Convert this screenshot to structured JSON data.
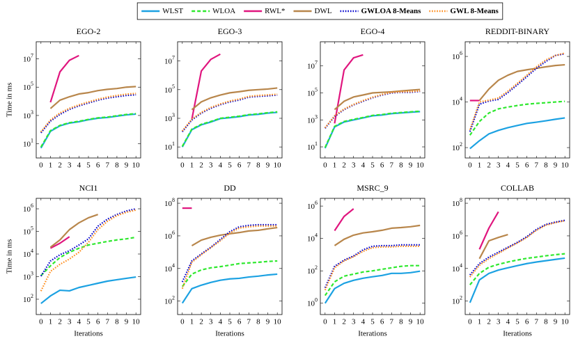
{
  "legend": [
    {
      "name": "WLST",
      "color": "#1ba1e2",
      "dash": "none",
      "bold": false
    },
    {
      "name": "WLOA",
      "color": "#2ee82e",
      "dash": "5,3",
      "bold": false
    },
    {
      "name": "RWL*",
      "color": "#e0157e",
      "dash": "none",
      "bold": false
    },
    {
      "name": "DWL",
      "color": "#b8864b",
      "dash": "none",
      "bold": false
    },
    {
      "name": "GWLOA 8-Means",
      "color": "#0000cc",
      "dash": "1.6,2",
      "bold": true
    },
    {
      "name": "GWL 8-Means",
      "color": "#ff8c1a",
      "dash": "1.6,2",
      "bold": true
    }
  ],
  "chart_data": [
    {
      "type": "line",
      "title": "EGO-2",
      "ylabel": "Time in ms",
      "log_y": true,
      "x": [
        0,
        1,
        2,
        3,
        4,
        5,
        6,
        7,
        8,
        9,
        10
      ],
      "xlim": [
        -0.5,
        10.5
      ],
      "xticks": [
        0,
        1,
        2,
        3,
        4,
        5,
        6,
        7,
        8,
        9,
        10
      ],
      "ylim": [
        1,
        160000000
      ],
      "yticks": [
        {
          "value": 10,
          "label": "10^1"
        },
        {
          "value": 1000,
          "label": "10^3"
        },
        {
          "value": 100000,
          "label": "10^5"
        },
        {
          "value": 10000000,
          "label": "10^7"
        }
      ],
      "series": [
        {
          "values": [
            5,
            76,
            186,
            290,
            360,
            500,
            640,
            720,
            900,
            1100,
            1250
          ]
        },
        {
          "values": [
            6,
            85,
            200,
            310,
            390,
            530,
            680,
            770,
            960,
            1180,
            1350
          ]
        },
        {
          "values": [
            null,
            8500,
            1200000,
            7900000,
            17000000,
            null,
            null,
            null,
            null,
            null,
            null
          ]
        },
        {
          "values": [
            null,
            3100,
            12000,
            21000,
            33000,
            41000,
            57000,
            70000,
            80000,
            100000,
            110000
          ]
        },
        {
          "values": [
            60,
            400,
            1200,
            2700,
            4800,
            7600,
            12000,
            17000,
            21000,
            26000,
            29000
          ]
        },
        {
          "values": [
            70,
            480,
            1500,
            3200,
            5600,
            9000,
            14000,
            20000,
            26000,
            32000,
            36000
          ]
        }
      ]
    },
    {
      "type": "line",
      "title": "EGO-3",
      "log_y": true,
      "x": [
        0,
        1,
        2,
        3,
        4,
        5,
        6,
        7,
        8,
        9,
        10
      ],
      "xlim": [
        -0.5,
        10.5
      ],
      "xticks": [
        0,
        1,
        2,
        3,
        4,
        5,
        6,
        7,
        8,
        9,
        10
      ],
      "ylim": [
        1.7,
        220000000
      ],
      "yticks": [
        {
          "value": 10,
          "label": "10^1"
        },
        {
          "value": 1000,
          "label": "10^3"
        },
        {
          "value": 100000,
          "label": "10^5"
        },
        {
          "value": 10000000,
          "label": "10^7"
        }
      ],
      "series": [
        {
          "values": [
            10,
            160,
            350,
            550,
            950,
            1100,
            1300,
            1700,
            1900,
            2300,
            2600
          ]
        },
        {
          "values": [
            11,
            175,
            380,
            600,
            1000,
            1180,
            1400,
            1800,
            2050,
            2450,
            2800
          ]
        },
        {
          "values": [
            null,
            850,
            2000000,
            13000000,
            30000000,
            null,
            null,
            null,
            null,
            null,
            null
          ]
        },
        {
          "values": [
            null,
            4000,
            14000,
            27000,
            42000,
            60000,
            72000,
            90000,
            100000,
            110000,
            130000
          ]
        },
        {
          "values": [
            115,
            760,
            2300,
            5000,
            8900,
            14000,
            19000,
            30000,
            34000,
            37000,
            42000
          ]
        },
        {
          "values": [
            130,
            870,
            2600,
            5700,
            10000,
            16000,
            22000,
            34000,
            39000,
            43000,
            48000
          ]
        }
      ]
    },
    {
      "type": "line",
      "title": "EGO-4",
      "log_y": true,
      "x": [
        0,
        1,
        2,
        3,
        4,
        5,
        6,
        7,
        8,
        9,
        10
      ],
      "xlim": [
        -0.5,
        10.5
      ],
      "xticks": [
        0,
        1,
        2,
        3,
        4,
        5,
        6,
        7,
        8,
        9,
        10
      ],
      "ylim": [
        1.5,
        620000000
      ],
      "yticks": [
        {
          "value": 10,
          "label": "10^1"
        },
        {
          "value": 1000,
          "label": "10^3"
        },
        {
          "value": 100000,
          "label": "10^5"
        },
        {
          "value": 10000000,
          "label": "10^7"
        }
      ],
      "series": [
        {
          "values": [
            8,
            300,
            700,
            1000,
            1400,
            2000,
            2300,
            2900,
            3300,
            3700,
            4100
          ]
        },
        {
          "values": [
            9,
            330,
            760,
            1100,
            1500,
            2150,
            2500,
            3100,
            3500,
            3950,
            4400
          ]
        },
        {
          "values": [
            null,
            550,
            5000000,
            40000000,
            66000000,
            null,
            null,
            null,
            null,
            null,
            null
          ]
        },
        {
          "values": [
            null,
            5800,
            24000,
            50000,
            70000,
            100000,
            110000,
            120000,
            140000,
            160000,
            180000
          ]
        },
        {
          "values": [
            240,
            1800,
            5800,
            13000,
            24000,
            44000,
            70000,
            100000,
            110000,
            110000,
            130000
          ]
        },
        {
          "values": [
            260,
            2000,
            6400,
            14000,
            27000,
            48000,
            77000,
            110000,
            120000,
            125000,
            140000
          ]
        }
      ]
    },
    {
      "type": "line",
      "title": "REDDIT-BINARY",
      "log_y": true,
      "x": [
        0,
        1,
        2,
        3,
        4,
        5,
        6,
        7,
        8,
        9,
        10
      ],
      "xlim": [
        -0.5,
        10.5
      ],
      "xticks": [
        0,
        1,
        2,
        3,
        4,
        5,
        6,
        7,
        8,
        9,
        10
      ],
      "ylim": [
        35,
        4400000
      ],
      "yticks": [
        {
          "value": 100,
          "label": "10^2"
        },
        {
          "value": 10000,
          "label": "10^4"
        },
        {
          "value": 1000000,
          "label": "10^6"
        }
      ],
      "series": [
        {
          "values": [
            90,
            200,
            400,
            570,
            750,
            930,
            1150,
            1300,
            1500,
            1750,
            2000
          ]
        },
        {
          "values": [
            350,
            1400,
            3300,
            5000,
            6000,
            7000,
            8000,
            8700,
            9300,
            10000,
            10700
          ]
        },
        {
          "values": [
            11600,
            11600,
            null,
            null,
            null,
            null,
            null,
            null,
            null,
            null,
            null
          ]
        },
        {
          "values": [
            null,
            11600,
            37000,
            90000,
            150000,
            220000,
            260000,
            300000,
            350000,
            400000,
            430000
          ]
        },
        {
          "values": [
            500,
            8000,
            11000,
            13000,
            26000,
            57000,
            130000,
            300000,
            600000,
            1100000,
            1300000
          ]
        },
        {
          "values": [
            600,
            10000,
            12000,
            15000,
            30000,
            66000,
            150000,
            350000,
            700000,
            1100000,
            1400000
          ]
        }
      ]
    },
    {
      "type": "line",
      "title": "NCI1",
      "ylabel": "Time in ms",
      "xlabel": "Iterations",
      "log_y": true,
      "x": [
        0,
        1,
        2,
        3,
        4,
        5,
        6,
        7,
        8,
        9,
        10
      ],
      "xlim": [
        -0.5,
        10.5
      ],
      "xticks": [
        0,
        1,
        2,
        3,
        4,
        5,
        6,
        7,
        8,
        9,
        10
      ],
      "ylim": [
        21,
        2900000
      ],
      "yticks": [
        {
          "value": 100,
          "label": "10^2"
        },
        {
          "value": 1000,
          "label": "10^3"
        },
        {
          "value": 10000,
          "label": "10^4"
        },
        {
          "value": 100000,
          "label": "10^5"
        },
        {
          "value": 1000000,
          "label": "10^6"
        }
      ],
      "series": [
        {
          "values": [
            65,
            140,
            250,
            235,
            330,
            410,
            510,
            630,
            730,
            840,
            960
          ]
        },
        {
          "values": [
            1100,
            3000,
            7000,
            12000,
            18000,
            25000,
            30000,
            36000,
            42000,
            47000,
            55000
          ]
        },
        {
          "values": [
            null,
            18000,
            30000,
            58000,
            null,
            null,
            null,
            null,
            null,
            null,
            null
          ]
        },
        {
          "values": [
            null,
            20000,
            42000,
            120000,
            240000,
            400000,
            560000,
            null,
            null,
            null,
            null
          ]
        },
        {
          "values": [
            1050,
            4900,
            9300,
            14000,
            25000,
            47000,
            170000,
            350000,
            560000,
            800000,
            1000000
          ]
        },
        {
          "values": [
            230,
            1700,
            3500,
            6000,
            12000,
            33000,
            120000,
            280000,
            500000,
            700000,
            880000
          ]
        }
      ]
    },
    {
      "type": "line",
      "title": "DD",
      "xlabel": "Iterations",
      "log_y": true,
      "x": [
        0,
        1,
        2,
        3,
        4,
        5,
        6,
        7,
        8,
        9,
        10
      ],
      "xlim": [
        -0.5,
        10.5
      ],
      "xticks": [
        0,
        1,
        2,
        3,
        4,
        5,
        6,
        7,
        8,
        9,
        10
      ],
      "ylim": [
        15,
        200000000
      ],
      "yticks": [
        {
          "value": 100,
          "label": "10^2"
        },
        {
          "value": 10000,
          "label": "10^4"
        },
        {
          "value": 1000000,
          "label": "10^6"
        },
        {
          "value": 100000000,
          "label": "10^8"
        }
      ],
      "series": [
        {
          "values": [
            75,
            580,
            950,
            1400,
            1900,
            2300,
            2500,
            3000,
            3400,
            4000,
            4500
          ]
        },
        {
          "values": [
            780,
            4500,
            8200,
            11000,
            13000,
            16000,
            20000,
            22000,
            24000,
            27000,
            29000
          ]
        },
        {
          "values": [
            50000000,
            50000000,
            null,
            null,
            null,
            null,
            null,
            null,
            null,
            null,
            null
          ]
        },
        {
          "values": [
            null,
            250000,
            550000,
            820000,
            1100000,
            1350000,
            1600000,
            2000000,
            2200000,
            2700000,
            3200000
          ]
        },
        {
          "values": [
            1500,
            29000,
            78000,
            200000,
            600000,
            1800000,
            3600000,
            4400000,
            4800000,
            4800000,
            4800000
          ]
        },
        {
          "values": [
            580,
            24000,
            70000,
            190000,
            500000,
            1500000,
            3000000,
            3600000,
            4000000,
            4000000,
            4000000
          ]
        }
      ]
    },
    {
      "type": "line",
      "title": "MSRC_9",
      "xlabel": "Iterations",
      "log_y": true,
      "x": [
        0,
        1,
        2,
        3,
        4,
        5,
        6,
        7,
        8,
        9,
        10
      ],
      "xlim": [
        -0.5,
        10.5
      ],
      "xticks": [
        0,
        1,
        2,
        3,
        4,
        5,
        6,
        7,
        8,
        9,
        10
      ],
      "ylim": [
        0.2,
        3000000
      ],
      "yticks": [
        {
          "value": 1,
          "label": "10^0"
        },
        {
          "value": 100,
          "label": "10^2"
        },
        {
          "value": 10000,
          "label": "10^4"
        },
        {
          "value": 1000000,
          "label": "10^6"
        }
      ],
      "series": [
        {
          "values": [
            1,
            8,
            17,
            26,
            35,
            43,
            52,
            70,
            70,
            77,
            95
          ]
        },
        {
          "values": [
            3,
            21,
            47,
            63,
            85,
            100,
            125,
            155,
            190,
            210,
            210
          ]
        },
        {
          "values": [
            null,
            30000,
            230000,
            680000,
            null,
            null,
            null,
            null,
            null,
            null,
            null
          ]
        },
        {
          "values": [
            null,
            3600,
            8900,
            16000,
            22000,
            26000,
            32000,
            43000,
            47000,
            53000,
            64000
          ]
        },
        {
          "values": [
            9,
            190,
            460,
            830,
            2000,
            3300,
            3600,
            3600,
            4000,
            4000,
            4000
          ]
        },
        {
          "values": [
            6.5,
            155,
            410,
            750,
            1600,
            2700,
            3000,
            3000,
            3300,
            3300,
            3300
          ]
        }
      ]
    },
    {
      "type": "line",
      "title": "COLLAB",
      "xlabel": "Iterations",
      "log_y": true,
      "x": [
        0,
        1,
        2,
        3,
        4,
        5,
        6,
        7,
        8,
        9,
        10
      ],
      "xlim": [
        -0.5,
        10.5
      ],
      "xticks": [
        0,
        1,
        2,
        3,
        4,
        5,
        6,
        7,
        8,
        9,
        10
      ],
      "ylim": [
        15,
        200000000
      ],
      "yticks": [
        {
          "value": 100,
          "label": "10^2"
        },
        {
          "value": 10000,
          "label": "10^4"
        },
        {
          "value": 1000000,
          "label": "10^6"
        },
        {
          "value": 100000000,
          "label": "10^8"
        }
      ],
      "series": [
        {
          "values": [
            80,
            2000,
            5000,
            8000,
            11000,
            15000,
            20000,
            25000,
            30000,
            36000,
            43000
          ]
        },
        {
          "values": [
            1000,
            5000,
            12000,
            18000,
            25000,
            33000,
            42000,
            50000,
            60000,
            70000,
            80000
          ]
        },
        {
          "values": [
            null,
            150000,
            3000000,
            30000000,
            null,
            null,
            null,
            null,
            null,
            null,
            null
          ]
        },
        {
          "values": [
            null,
            40000,
            500000,
            800000,
            1200000,
            null,
            null,
            null,
            null,
            null,
            null
          ]
        },
        {
          "values": [
            4000,
            20000,
            50000,
            100000,
            200000,
            400000,
            900000,
            2500000,
            5000000,
            7000000,
            9000000
          ]
        },
        {
          "values": [
            3000,
            16000,
            40000,
            85000,
            180000,
            370000,
            800000,
            2200000,
            4500000,
            6500000,
            8500000
          ]
        }
      ]
    }
  ]
}
